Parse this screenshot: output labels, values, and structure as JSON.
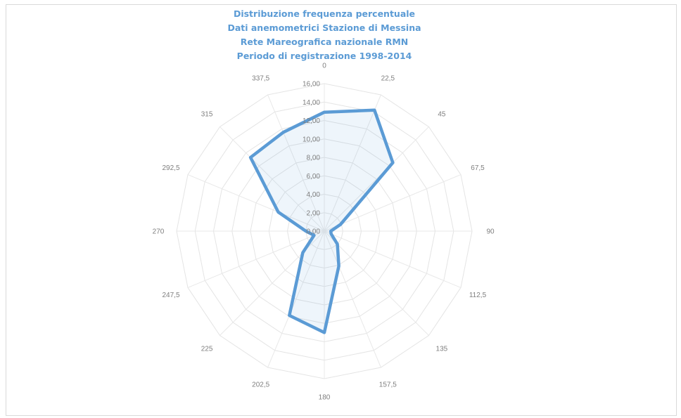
{
  "chart_data": {
    "type": "radar",
    "title_lines": [
      "Distribuzione frequenza percentuale",
      "Dati anemometrici Stazione di Messina",
      "Rete Mareografica nazionale RMN",
      "Periodo di registrazione 1998-2014"
    ],
    "categories": [
      "0",
      "22,5",
      "45",
      "67,5",
      "90",
      "112,5",
      "135",
      "157,5",
      "180",
      "202,5",
      "225",
      "247,5",
      "270",
      "292,5",
      "315",
      "337,5"
    ],
    "ticks": [
      "0,00",
      "2,00",
      "4,00",
      "6,00",
      "8,00",
      "10,00",
      "12,00",
      "14,00",
      "16,00"
    ],
    "rmin": 0,
    "rmax": 16,
    "series": [
      {
        "values": [
          12.9,
          14.2,
          10.5,
          1.9,
          0.7,
          0.8,
          2.0,
          4.1,
          11.0,
          9.9,
          3.3,
          1.2,
          2.0,
          5.4,
          11.3,
          11.6
        ]
      }
    ],
    "colors": {
      "series": "#5b9bd5",
      "grid": "#e4e4e4",
      "text": "#7f7f7f"
    }
  }
}
